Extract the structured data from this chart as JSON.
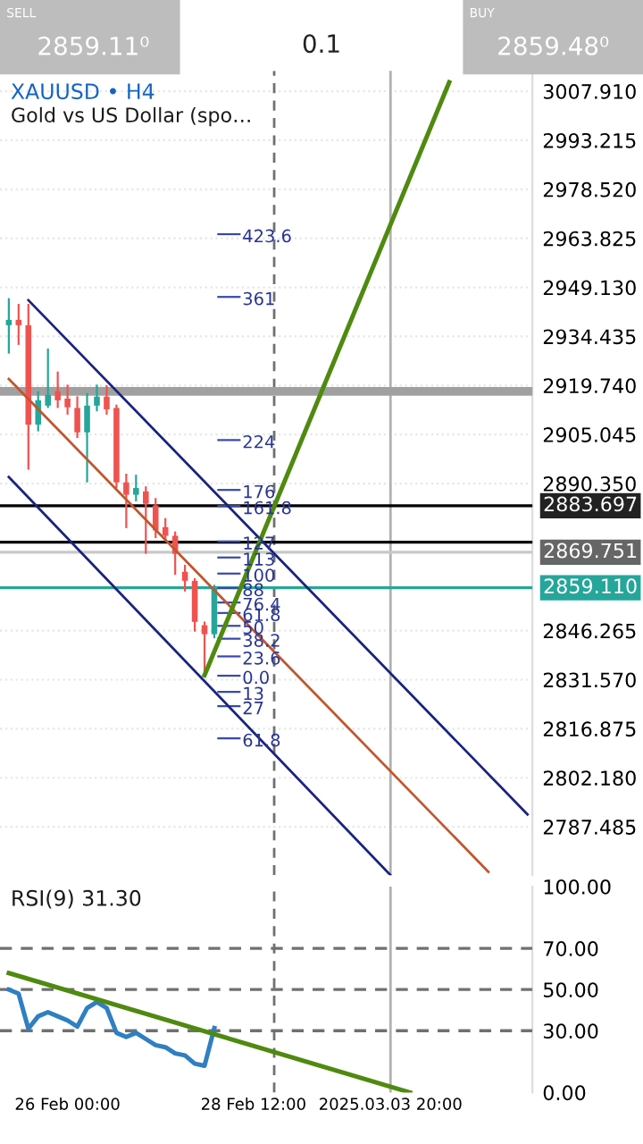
{
  "chart_data": [
    {
      "type": "candlestick",
      "title": "XAUUSD • H4",
      "subtitle": "Gold vs US Dollar (spo…",
      "categories": [
        null,
        null,
        null,
        null,
        null,
        null,
        "26 Feb 00:00",
        null,
        null,
        null,
        null,
        null,
        null,
        null,
        null,
        null,
        null,
        null,
        null,
        null,
        null,
        null,
        null,
        null,
        null,
        "28 Feb 12:00",
        null,
        null,
        null,
        null,
        null,
        null,
        null,
        null,
        null,
        null,
        null,
        null,
        null,
        "2025.03.03 20:00",
        null,
        null,
        null,
        null,
        null,
        null,
        null,
        null,
        null,
        null,
        null,
        null,
        null,
        null
      ],
      "ohlc": [
        [
          2937.8,
          2945.9,
          2929.3,
          2939.4
        ],
        [
          2939.4,
          2944.2,
          2931.9,
          2937.8
        ],
        [
          2937.8,
          2944.2,
          2894.5,
          2908
        ],
        [
          2908,
          2918,
          2906,
          2915.3
        ],
        [
          2913.7,
          2930.8,
          2913,
          2916.9
        ],
        [
          2918,
          2923.9,
          2913,
          2915.3
        ],
        [
          2915.8,
          2920,
          2911,
          2913.2
        ],
        [
          2913,
          2916.5,
          2904,
          2905.7
        ],
        [
          2905.7,
          2917.5,
          2890.7,
          2913.7
        ],
        [
          2913.7,
          2920,
          2912,
          2916.4
        ],
        [
          2916.4,
          2919.8,
          2911,
          2912.6
        ],
        [
          2913,
          2914,
          2889,
          2890.7
        ],
        [
          2890.7,
          2893.3,
          2877,
          2887
        ],
        [
          2887,
          2893,
          2885,
          2889
        ],
        [
          2888,
          2889.5,
          2869.3,
          2884.3
        ],
        [
          2883.8,
          2886,
          2874,
          2876.3
        ],
        [
          2877.3,
          2880,
          2873,
          2874.7
        ],
        [
          2874.7,
          2876,
          2863,
          2869.3
        ],
        [
          2863.9,
          2866,
          2858,
          2861.2
        ],
        [
          2861.2,
          2862,
          2846,
          2848.9
        ],
        [
          2847.9,
          2849,
          2832.9,
          2845.2
        ],
        [
          2845.2,
          2860,
          2844,
          2859.1
        ],
        null,
        null,
        null,
        null,
        null,
        null,
        null,
        null,
        null,
        null,
        null,
        null,
        null,
        null,
        null,
        null,
        null,
        null,
        null,
        null,
        null,
        null,
        null,
        null,
        null,
        null,
        null,
        null,
        null,
        null,
        null,
        null
      ],
      "colors": [
        "#26a69a",
        "#ef5350",
        "#ef5350",
        "#26a69a",
        "#26a69a",
        "#ef5350",
        "#ef5350",
        "#ef5350",
        "#26a69a",
        "#26a69a",
        "#ef5350",
        "#ef5350",
        "#ef5350",
        "#26a69a",
        "#ef5350",
        "#ef5350",
        "#ef5350",
        "#ef5350",
        "#ef5350",
        "#ef5350",
        "#ef5350",
        "#26a69a",
        null,
        null,
        null,
        null,
        null,
        null,
        null,
        null,
        null,
        null,
        null,
        null,
        null,
        null,
        null,
        null,
        null,
        null,
        null,
        null,
        null,
        null,
        null,
        null,
        null,
        null,
        null,
        null,
        null,
        null,
        null,
        null
      ],
      "series": [
        {
          "type": "line",
          "color": "#1a237e",
          "values": [
            null,
            null,
            2945.3,
            null,
            null,
            null,
            null,
            null,
            null,
            null,
            null,
            null,
            null,
            null,
            null,
            null,
            null,
            null,
            null,
            null,
            null,
            null,
            null,
            null,
            null,
            null,
            null,
            null,
            null,
            null,
            null,
            null,
            null,
            null,
            null,
            null,
            null,
            null,
            null,
            null,
            null,
            null,
            null,
            null,
            null,
            null,
            null,
            null,
            null,
            null,
            null,
            null,
            null,
            2791.2
          ]
        },
        {
          "type": "line",
          "color": "#1a237e",
          "values": [
            2892.3,
            null,
            null,
            null,
            null,
            null,
            null,
            null,
            null,
            null,
            null,
            null,
            null,
            null,
            null,
            null,
            null,
            null,
            null,
            null,
            null,
            null,
            null,
            null,
            null,
            null,
            null,
            null,
            null,
            null,
            null,
            null,
            null,
            null,
            null,
            null,
            null,
            null,
            null,
            2773.0,
            null,
            null,
            null,
            null,
            null,
            null,
            null,
            null,
            null,
            null,
            null,
            null,
            null,
            null
          ]
        },
        {
          "type": "line",
          "color": "#c0562e",
          "values": [
            2921.7,
            null,
            null,
            null,
            null,
            null,
            null,
            null,
            null,
            null,
            null,
            null,
            null,
            null,
            null,
            null,
            null,
            null,
            null,
            null,
            null,
            null,
            null,
            null,
            null,
            null,
            null,
            null,
            null,
            null,
            null,
            null,
            null,
            null,
            null,
            null,
            null,
            null,
            null,
            null,
            null,
            null,
            null,
            null,
            null,
            null,
            null,
            null,
            null,
            2774.0,
            null,
            null,
            null,
            null
          ]
        },
        {
          "type": "line",
          "color": "#4f8a10",
          "values": [
            null,
            null,
            null,
            null,
            null,
            null,
            null,
            null,
            null,
            null,
            null,
            null,
            null,
            null,
            null,
            null,
            null,
            null,
            null,
            null,
            2832.9,
            null,
            null,
            null,
            null,
            null,
            null,
            null,
            null,
            null,
            null,
            null,
            null,
            null,
            null,
            null,
            null,
            null,
            null,
            null,
            null,
            null,
            null,
            null,
            null,
            3010.6,
            null,
            null,
            null,
            null,
            null,
            null,
            null,
            null
          ]
        }
      ],
      "ylim": [
        2773,
        3014
      ],
      "yticks": [
        {
          "value": 3007.91,
          "label": "3007.910"
        },
        {
          "value": 2993.215,
          "label": "2993.215"
        },
        {
          "value": 2978.52,
          "label": "2978.520"
        },
        {
          "value": 2963.825,
          "label": "2963.825"
        },
        {
          "value": 2949.13,
          "label": "2949.130"
        },
        {
          "value": 2934.435,
          "label": "2934.435"
        },
        {
          "value": 2919.74,
          "label": "2919.740"
        },
        {
          "value": 2905.045,
          "label": "2905.045"
        },
        {
          "value": 2890.35,
          "label": "2890.350"
        },
        {
          "value": 2846.265,
          "label": "2846.265"
        },
        {
          "value": 2831.57,
          "label": "2831.570"
        },
        {
          "value": 2816.875,
          "label": "2816.875"
        },
        {
          "value": 2802.18,
          "label": "2802.180"
        },
        {
          "value": 2787.485,
          "label": "2787.485"
        }
      ],
      "ref_lines": [
        {
          "axis": "y",
          "value": 2918,
          "label": null,
          "color": "#a0a0a0"
        },
        {
          "axis": "y",
          "value": 2883.697,
          "label": "2883.697",
          "color": "#000000"
        },
        {
          "axis": "y",
          "value": 2872.8,
          "label": null,
          "color": "#000000"
        },
        {
          "axis": "y",
          "value": 2869.751,
          "label": "2869.751",
          "color": "#c8c8c8"
        },
        {
          "axis": "y",
          "value": 2859.11,
          "label": "2859.110",
          "color": "#26a69a"
        },
        {
          "axis": "x",
          "value": "2025.03.03 20:00",
          "label": null,
          "color": "#b0b0b0"
        }
      ],
      "annotations": [
        "SELL",
        "2859.11⁰",
        "0.1",
        "BUY",
        "2859.48⁰",
        "423.6",
        "361",
        "224",
        "176",
        "161.8",
        "127",
        "113",
        "100",
        "88",
        "76.4",
        "61.8",
        "50",
        "38.2",
        "23.6",
        "0.0",
        "13",
        "27",
        "61.8"
      ],
      "grid": "y",
      "tick_labels": "y"
    },
    {
      "type": "line",
      "title": "RSI(9) 31.30",
      "categories": [
        null,
        null,
        null,
        null,
        null,
        null,
        "26 Feb 00:00",
        null,
        null,
        null,
        null,
        null,
        null,
        null,
        null,
        null,
        null,
        null,
        null,
        null,
        null,
        null,
        null,
        null,
        null,
        "28 Feb 12:00",
        null,
        null,
        null,
        null,
        null,
        null,
        null,
        null,
        null,
        null,
        null,
        null,
        null,
        "2025.03.03 20:00",
        null,
        null,
        null,
        null,
        null,
        null,
        null,
        null,
        null,
        null,
        null,
        null,
        null,
        null
      ],
      "series": [
        {
          "color": "#2f7fc1",
          "values": [
            50,
            48,
            31,
            37,
            39,
            37,
            35,
            32,
            41,
            44,
            41,
            29,
            27,
            29,
            26,
            23,
            22,
            19,
            18,
            14,
            13,
            31.3,
            null,
            null,
            null,
            null,
            null,
            null,
            null,
            null,
            null,
            null,
            null,
            null,
            null,
            null,
            null,
            null,
            null,
            null,
            null,
            null,
            null,
            null,
            null,
            null,
            null,
            null,
            null,
            null,
            null,
            null,
            null,
            null
          ]
        },
        {
          "color": "#4f8a10",
          "values": [
            58,
            null,
            null,
            null,
            null,
            null,
            null,
            null,
            null,
            null,
            null,
            null,
            null,
            null,
            null,
            null,
            null,
            null,
            null,
            null,
            null,
            null,
            null,
            null,
            null,
            null,
            null,
            null,
            null,
            null,
            null,
            null,
            null,
            null,
            null,
            null,
            null,
            null,
            null,
            null,
            null,
            0,
            null,
            null,
            null,
            null,
            null,
            null,
            null,
            null,
            null,
            null,
            null,
            null
          ]
        }
      ],
      "ylim": [
        0,
        100
      ],
      "yticks": [
        {
          "value": 0,
          "label": "0.00"
        },
        {
          "value": 30,
          "label": "30.00"
        },
        {
          "value": 50,
          "label": "50.00"
        },
        {
          "value": 70,
          "label": "70.00"
        },
        {
          "value": 100,
          "label": "100.00"
        }
      ],
      "ref_lines": [
        {
          "axis": "y",
          "value": 70,
          "label": null,
          "color": "#707070",
          "line_style": "dashed"
        },
        {
          "axis": "y",
          "value": 50,
          "label": null,
          "color": "#707070",
          "line_style": "dashed"
        },
        {
          "axis": "y",
          "value": 30,
          "label": null,
          "color": "#707070",
          "line_style": "dashed"
        },
        {
          "axis": "x",
          "value": "2025.03.03 20:00",
          "label": null,
          "color": "#b0b0b0"
        }
      ],
      "grid": false
    }
  ]
}
